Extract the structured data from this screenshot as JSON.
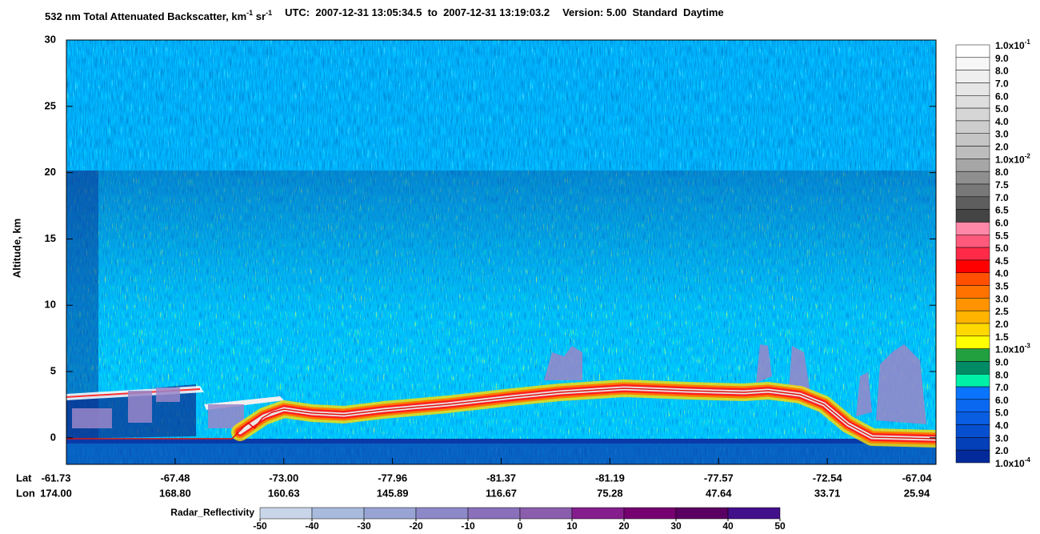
{
  "chart_data": {
    "type": "curtain",
    "title": [
      "532 nm Total Attenuated Backscatter, km",
      "-1",
      " sr",
      "-1"
    ],
    "time_range": "UTC:  2007-12-31 13:05:34.5  to  2007-12-31 13:19:03.2",
    "version": "Version: 5.00  Standard  Daytime",
    "ylabel": "Altitude, km",
    "ylim": [
      -2,
      30
    ],
    "yticks": [
      0,
      5,
      10,
      15,
      20,
      25,
      30
    ],
    "lat_label": "Lat",
    "lon_label": "Lon",
    "lat": [
      "-61.73",
      "-67.48",
      "-73.00",
      "-77.96",
      "-81.37",
      "-81.19",
      "-77.57",
      "-72.54",
      "-67.04"
    ],
    "lon": [
      "174.00",
      "168.80",
      "160.63",
      "145.89",
      "116.67",
      "75.28",
      "47.64",
      "33.71",
      "25.94"
    ],
    "colorbar": {
      "levels": [
        {
          "label": "1.0x10",
          "sup": "-1"
        },
        {
          "label": "9.0"
        },
        {
          "label": "8.0"
        },
        {
          "label": "7.0"
        },
        {
          "label": "6.0"
        },
        {
          "label": "5.0"
        },
        {
          "label": "4.0"
        },
        {
          "label": "3.0"
        },
        {
          "label": "2.0"
        },
        {
          "label": "1.0x10",
          "sup": "-2"
        },
        {
          "label": "8.0"
        },
        {
          "label": "7.5"
        },
        {
          "label": "7.0"
        },
        {
          "label": "6.5"
        },
        {
          "label": "6.0"
        },
        {
          "label": "5.5"
        },
        {
          "label": "5.0"
        },
        {
          "label": "4.5"
        },
        {
          "label": "4.0"
        },
        {
          "label": "3.5"
        },
        {
          "label": "3.0"
        },
        {
          "label": "2.5"
        },
        {
          "label": "2.0"
        },
        {
          "label": "1.5"
        },
        {
          "label": "1.0x10",
          "sup": "-3"
        },
        {
          "label": "9.0"
        },
        {
          "label": "8.0"
        },
        {
          "label": "7.0"
        },
        {
          "label": "6.0"
        },
        {
          "label": "5.0"
        },
        {
          "label": "4.0"
        },
        {
          "label": "3.0"
        },
        {
          "label": "2.0"
        },
        {
          "label": "1.0x10",
          "sup": "-4"
        }
      ],
      "colors": [
        "#ffffff",
        "#f7f7f7",
        "#efefef",
        "#e6e6e6",
        "#dedede",
        "#d6d6d6",
        "#cdcdcd",
        "#c5c5c5",
        "#bdbdbd",
        "#a6a6a6",
        "#8f8f8f",
        "#787878",
        "#5e5e5e",
        "#444444",
        "#ff88a8",
        "#ff5a7c",
        "#ff2a48",
        "#ff0000",
        "#ff5000",
        "#ff7200",
        "#ff9400",
        "#ffb400",
        "#ffd800",
        "#ffff00",
        "#22a040",
        "#008a66",
        "#00f0a8",
        "#0a74ff",
        "#0a68f0",
        "#085de0",
        "#0650d0",
        "#0440b8",
        "#022a9a"
      ]
    },
    "radar": {
      "label": "Radar_Reflectivity",
      "lim": [
        -50,
        50
      ],
      "ticks": [
        -50,
        -40,
        -30,
        -20,
        -10,
        0,
        10,
        20,
        30,
        40,
        50
      ],
      "colors": [
        "#c9d5e8",
        "#a9bbdc",
        "#97a4d4",
        "#8d88c8",
        "#8a70ba",
        "#8a5eac",
        "#851e8c",
        "#760070",
        "#5a0062",
        "#42108a"
      ]
    }
  }
}
